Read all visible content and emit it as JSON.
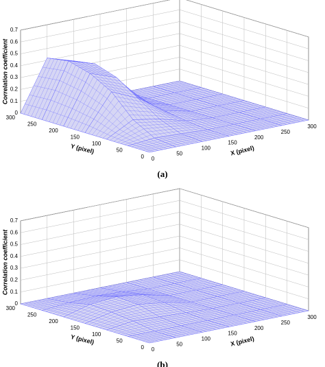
{
  "chart_data": [
    {
      "type": "surface3d",
      "caption": "(a)",
      "xlabel": "X (pixel)",
      "ylabel": "Y (pixel)",
      "zlabel": "Correlation coefficient",
      "x": [
        0,
        50,
        100,
        150,
        200,
        250,
        300
      ],
      "y": [
        0,
        50,
        100,
        150,
        200,
        250,
        300
      ],
      "z": [
        [
          0,
          0,
          0,
          0,
          0,
          0,
          0
        ],
        [
          0,
          0.02,
          0.01,
          0,
          0,
          0,
          0
        ],
        [
          0,
          0.12,
          0.08,
          0.02,
          0,
          0,
          0
        ],
        [
          0,
          0.3,
          0.2,
          0.05,
          0,
          0,
          0
        ],
        [
          0,
          0.4,
          0.32,
          0.06,
          0,
          0,
          0
        ],
        [
          0,
          0.45,
          0.38,
          0.05,
          0,
          0,
          0
        ],
        [
          0,
          0.42,
          0.35,
          0.03,
          0,
          0,
          0
        ]
      ],
      "xlim": [
        0,
        300
      ],
      "ylim": [
        0,
        300
      ],
      "zlim": [
        0,
        0.7
      ],
      "xticks": [
        0,
        50,
        100,
        150,
        200,
        250,
        300
      ],
      "yticks": [
        0,
        50,
        100,
        150,
        200,
        250,
        300
      ],
      "zticks": [
        0,
        0.1,
        0.2,
        0.3,
        0.4,
        0.5,
        0.6,
        0.7
      ],
      "grid": true,
      "color": "#6464ff"
    },
    {
      "type": "surface3d",
      "caption": "(b)",
      "xlabel": "X (pixel)",
      "ylabel": "Y (pixel)",
      "zlabel": "Correlation coefficient",
      "x": [
        0,
        50,
        100,
        150,
        200,
        250,
        300
      ],
      "y": [
        0,
        50,
        100,
        150,
        200,
        250,
        300
      ],
      "z": [
        [
          0,
          0,
          0,
          0,
          0,
          0,
          0
        ],
        [
          0,
          0,
          0,
          0,
          0,
          0,
          0
        ],
        [
          0,
          0.03,
          0.02,
          0.01,
          0,
          0,
          0
        ],
        [
          0,
          0.05,
          0.07,
          0.04,
          0,
          0,
          0
        ],
        [
          0,
          0.06,
          0.08,
          0.05,
          0,
          0,
          0
        ],
        [
          0,
          0.02,
          0.03,
          0.02,
          0,
          0,
          0
        ],
        [
          0,
          0,
          0,
          0,
          0,
          0,
          0
        ]
      ],
      "xlim": [
        0,
        300
      ],
      "ylim": [
        0,
        300
      ],
      "zlim": [
        0,
        0.7
      ],
      "xticks": [
        0,
        50,
        100,
        150,
        200,
        250,
        300
      ],
      "yticks": [
        0,
        50,
        100,
        150,
        200,
        250,
        300
      ],
      "zticks": [
        0,
        0.1,
        0.2,
        0.3,
        0.4,
        0.5,
        0.6,
        0.7
      ],
      "grid": true,
      "color": "#6464ff"
    }
  ]
}
